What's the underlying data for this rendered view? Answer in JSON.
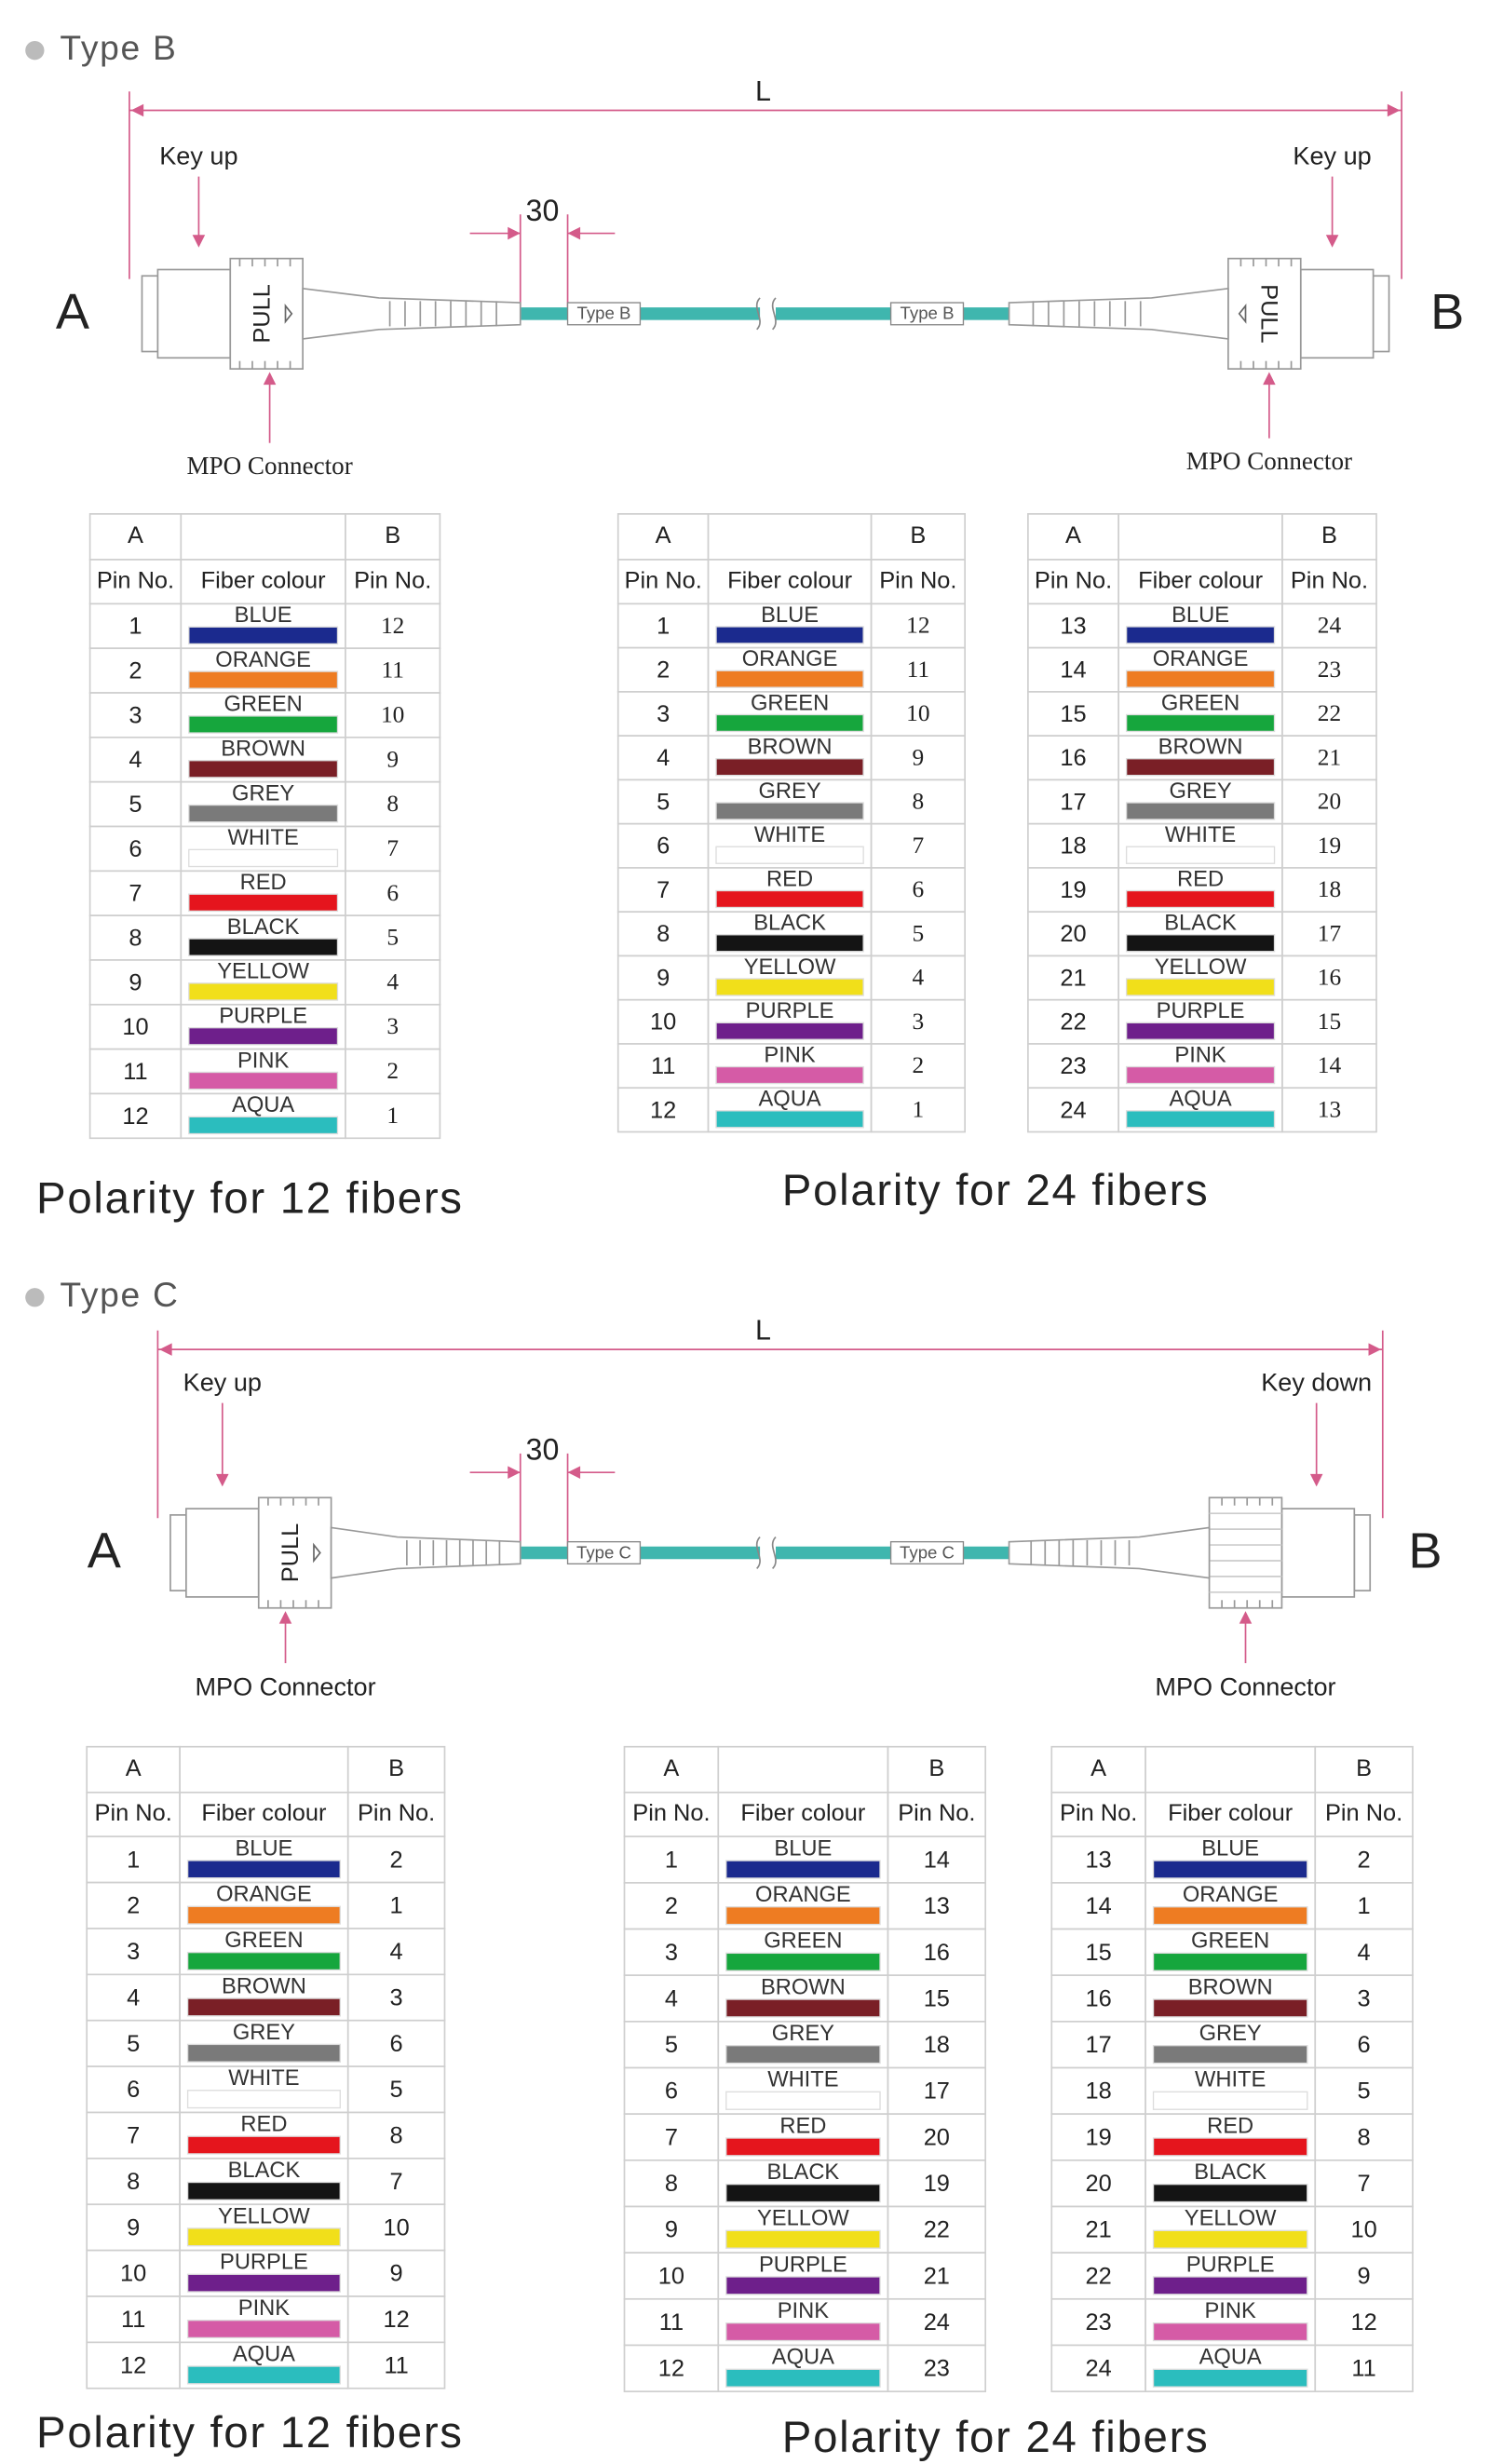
{
  "sections": [
    {
      "title": "Type B",
      "diagram": {
        "length": "L",
        "dimension": "30",
        "ends": [
          "A",
          "B"
        ],
        "keys": [
          "Key up",
          "Key up"
        ],
        "pull": [
          "PULL",
          "PULL"
        ],
        "cable_labels": [
          "Type B",
          "Type B"
        ],
        "connectors": [
          "MPO Connector",
          "MPO Connector"
        ]
      },
      "tables": [
        {
          "group_headers": [
            "A",
            "B"
          ],
          "column_headers": [
            "Pin No.",
            "Fiber colour",
            "Pin No."
          ],
          "rows": [
            [
              1,
              "BLUE",
              12
            ],
            [
              2,
              "ORANGE",
              11
            ],
            [
              3,
              "GREEN",
              10
            ],
            [
              4,
              "BROWN",
              9
            ],
            [
              5,
              "GREY",
              8
            ],
            [
              6,
              "WHITE",
              7
            ],
            [
              7,
              "RED",
              6
            ],
            [
              8,
              "BLACK",
              5
            ],
            [
              9,
              "YELLOW",
              4
            ],
            [
              10,
              "PURPLE",
              3
            ],
            [
              11,
              "PINK",
              2
            ],
            [
              12,
              "AQUA",
              1
            ]
          ]
        },
        {
          "group_headers": [
            "A",
            "B"
          ],
          "column_headers": [
            "Pin No.",
            "Fiber colour",
            "Pin No."
          ],
          "rows": [
            [
              1,
              "BLUE",
              12
            ],
            [
              2,
              "ORANGE",
              11
            ],
            [
              3,
              "GREEN",
              10
            ],
            [
              4,
              "BROWN",
              9
            ],
            [
              5,
              "GREY",
              8
            ],
            [
              6,
              "WHITE",
              7
            ],
            [
              7,
              "RED",
              6
            ],
            [
              8,
              "BLACK",
              5
            ],
            [
              9,
              "YELLOW",
              4
            ],
            [
              10,
              "PURPLE",
              3
            ],
            [
              11,
              "PINK",
              2
            ],
            [
              12,
              "AQUA",
              1
            ]
          ]
        },
        {
          "group_headers": [
            "A",
            "B"
          ],
          "column_headers": [
            "Pin No.",
            "Fiber colour",
            "Pin No."
          ],
          "rows": [
            [
              13,
              "BLUE",
              24
            ],
            [
              14,
              "ORANGE",
              23
            ],
            [
              15,
              "GREEN",
              22
            ],
            [
              16,
              "BROWN",
              21
            ],
            [
              17,
              "GREY",
              20
            ],
            [
              18,
              "WHITE",
              19
            ],
            [
              19,
              "RED",
              18
            ],
            [
              20,
              "BLACK",
              17
            ],
            [
              21,
              "YELLOW",
              16
            ],
            [
              22,
              "PURPLE",
              15
            ],
            [
              23,
              "PINK",
              14
            ],
            [
              24,
              "AQUA",
              13
            ]
          ]
        }
      ],
      "captions": [
        "Polarity for 12 fibers",
        "Polarity for 24 fibers"
      ]
    },
    {
      "title": "Type C",
      "diagram": {
        "length": "L",
        "dimension": "30",
        "ends": [
          "A",
          "B"
        ],
        "keys": [
          "Key up",
          "Key down"
        ],
        "pull": [
          "PULL"
        ],
        "cable_labels": [
          "Type C",
          "Type C"
        ],
        "connectors": [
          "MPO Connector",
          "MPO Connector"
        ]
      },
      "tables": [
        {
          "group_headers": [
            "A",
            "B"
          ],
          "column_headers": [
            "Pin No.",
            "Fiber colour",
            "Pin No."
          ],
          "rows": [
            [
              1,
              "BLUE",
              2
            ],
            [
              2,
              "ORANGE",
              1
            ],
            [
              3,
              "GREEN",
              4
            ],
            [
              4,
              "BROWN",
              3
            ],
            [
              5,
              "GREY",
              6
            ],
            [
              6,
              "WHITE",
              5
            ],
            [
              7,
              "RED",
              8
            ],
            [
              8,
              "BLACK",
              7
            ],
            [
              9,
              "YELLOW",
              10
            ],
            [
              10,
              "PURPLE",
              9
            ],
            [
              11,
              "PINK",
              12
            ],
            [
              12,
              "AQUA",
              11
            ]
          ]
        },
        {
          "group_headers": [
            "A",
            "B"
          ],
          "column_headers": [
            "Pin No.",
            "Fiber colour",
            "Pin No."
          ],
          "rows": [
            [
              1,
              "BLUE",
              14
            ],
            [
              2,
              "ORANGE",
              13
            ],
            [
              3,
              "GREEN",
              16
            ],
            [
              4,
              "BROWN",
              15
            ],
            [
              5,
              "GREY",
              18
            ],
            [
              6,
              "WHITE",
              17
            ],
            [
              7,
              "RED",
              20
            ],
            [
              8,
              "BLACK",
              19
            ],
            [
              9,
              "YELLOW",
              22
            ],
            [
              10,
              "PURPLE",
              21
            ],
            [
              11,
              "PINK",
              24
            ],
            [
              12,
              "AQUA",
              23
            ]
          ]
        },
        {
          "group_headers": [
            "A",
            "B"
          ],
          "column_headers": [
            "Pin No.",
            "Fiber colour",
            "Pin No."
          ],
          "rows": [
            [
              13,
              "BLUE",
              2
            ],
            [
              14,
              "ORANGE",
              1
            ],
            [
              15,
              "GREEN",
              4
            ],
            [
              16,
              "BROWN",
              3
            ],
            [
              17,
              "GREY",
              6
            ],
            [
              18,
              "WHITE",
              5
            ],
            [
              19,
              "RED",
              8
            ],
            [
              20,
              "BLACK",
              7
            ],
            [
              21,
              "YELLOW",
              10
            ],
            [
              22,
              "PURPLE",
              9
            ],
            [
              23,
              "PINK",
              12
            ],
            [
              24,
              "AQUA",
              11
            ]
          ]
        }
      ],
      "captions": [
        "Polarity for 12 fibers",
        "Polarity for 24 fibers"
      ]
    }
  ],
  "fiber_colors": {
    "BLUE": "#1b2a8e",
    "ORANGE": "#ee7c22",
    "GREEN": "#16a63d",
    "BROWN": "#7a1f26",
    "GREY": "#7a7a7a",
    "WHITE": "#ffffff",
    "RED": "#e5151d",
    "BLACK": "#141414",
    "YELLOW": "#f1df1a",
    "PURPLE": "#6e1f8b",
    "PINK": "#d55ba6",
    "AQUA": "#2bbdbe"
  }
}
